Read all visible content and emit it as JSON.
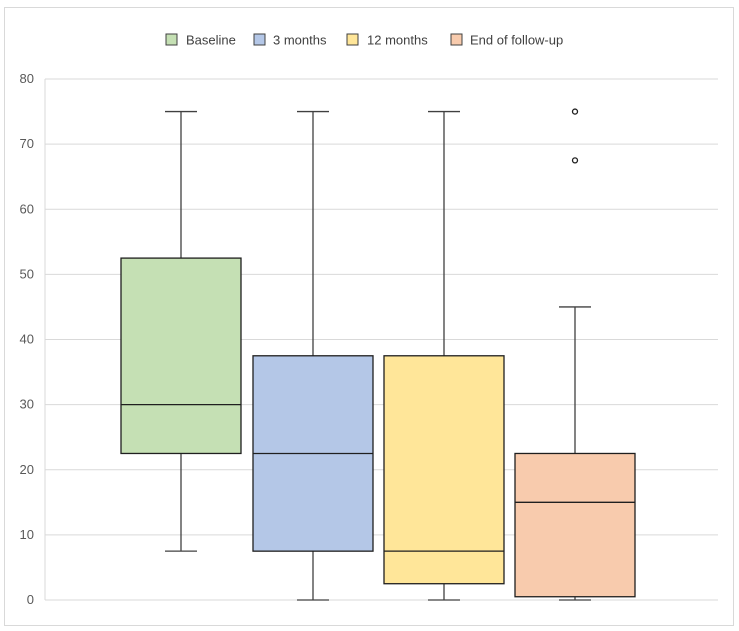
{
  "chart_data": {
    "type": "box",
    "title": "",
    "xlabel": "",
    "ylabel": "",
    "ylim": [
      0,
      80
    ],
    "yticks": [
      0,
      10,
      20,
      30,
      40,
      50,
      60,
      70,
      80
    ],
    "grid": true,
    "legend_position": "top",
    "series": [
      {
        "name": "Baseline",
        "color": "#c5e0b4",
        "min": 7.5,
        "q1": 22.5,
        "median": 30,
        "q3": 52.5,
        "max": 75,
        "outliers": []
      },
      {
        "name": "3 months",
        "color": "#b4c7e7",
        "min": 0,
        "q1": 7.5,
        "median": 22.5,
        "q3": 37.5,
        "max": 75,
        "outliers": []
      },
      {
        "name": "12 months",
        "color": "#ffe699",
        "min": 0,
        "q1": 2.5,
        "median": 7.5,
        "q3": 37.5,
        "max": 75,
        "outliers": []
      },
      {
        "name": "End of follow-up",
        "color": "#f8cbad",
        "min": 0,
        "q1": 0.5,
        "median": 15,
        "q3": 22.5,
        "max": 45,
        "outliers": [
          67.5,
          75
        ]
      }
    ]
  }
}
